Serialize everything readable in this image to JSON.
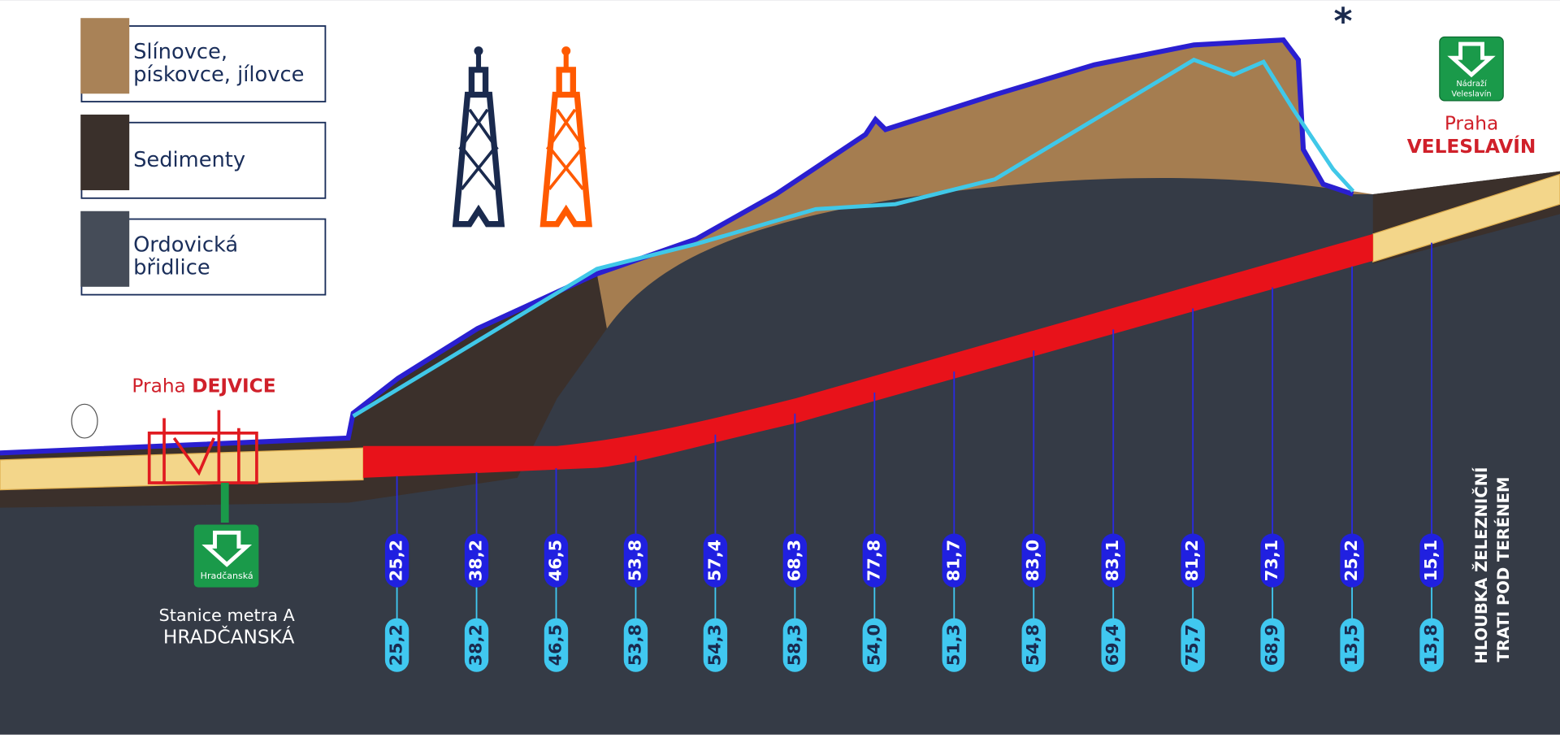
{
  "legend": [
    {
      "lines": [
        "Slínovce,",
        "pískovce, jílovce"
      ]
    },
    {
      "lines": [
        "Sedimenty"
      ]
    },
    {
      "lines": [
        "Ordovická",
        "břidlice"
      ]
    }
  ],
  "dejvice": {
    "city": "Praha",
    "name": "DEJVICE"
  },
  "metro": {
    "icon_label": "Hradčanská",
    "caption": [
      "Stanice metra A",
      "HRADČANSKÁ"
    ]
  },
  "veleslavin": {
    "icon_label": [
      "Nádraží",
      "Veleslavín"
    ],
    "city": "Praha",
    "name": "VELESLAVÍN"
  },
  "asterisk": "*",
  "depths": {
    "upper": [
      "25,2",
      "38,2",
      "46,5",
      "53,8",
      "57,4",
      "68,3",
      "77,8",
      "81,7",
      "83,0",
      "83,1",
      "81,2",
      "73,1",
      "25,2",
      "15,1"
    ],
    "lower": [
      "25,2",
      "38,2",
      "46,5",
      "53,8",
      "54,3",
      "58,3",
      "54,0",
      "51,3",
      "54,8",
      "69,4",
      "75,7",
      "68,9",
      "13,5",
      "13,8"
    ]
  },
  "axis_label": [
    "HLOUBKA ŽELEZNIČNÍ",
    "TRATI POD TERÉNEM"
  ]
}
